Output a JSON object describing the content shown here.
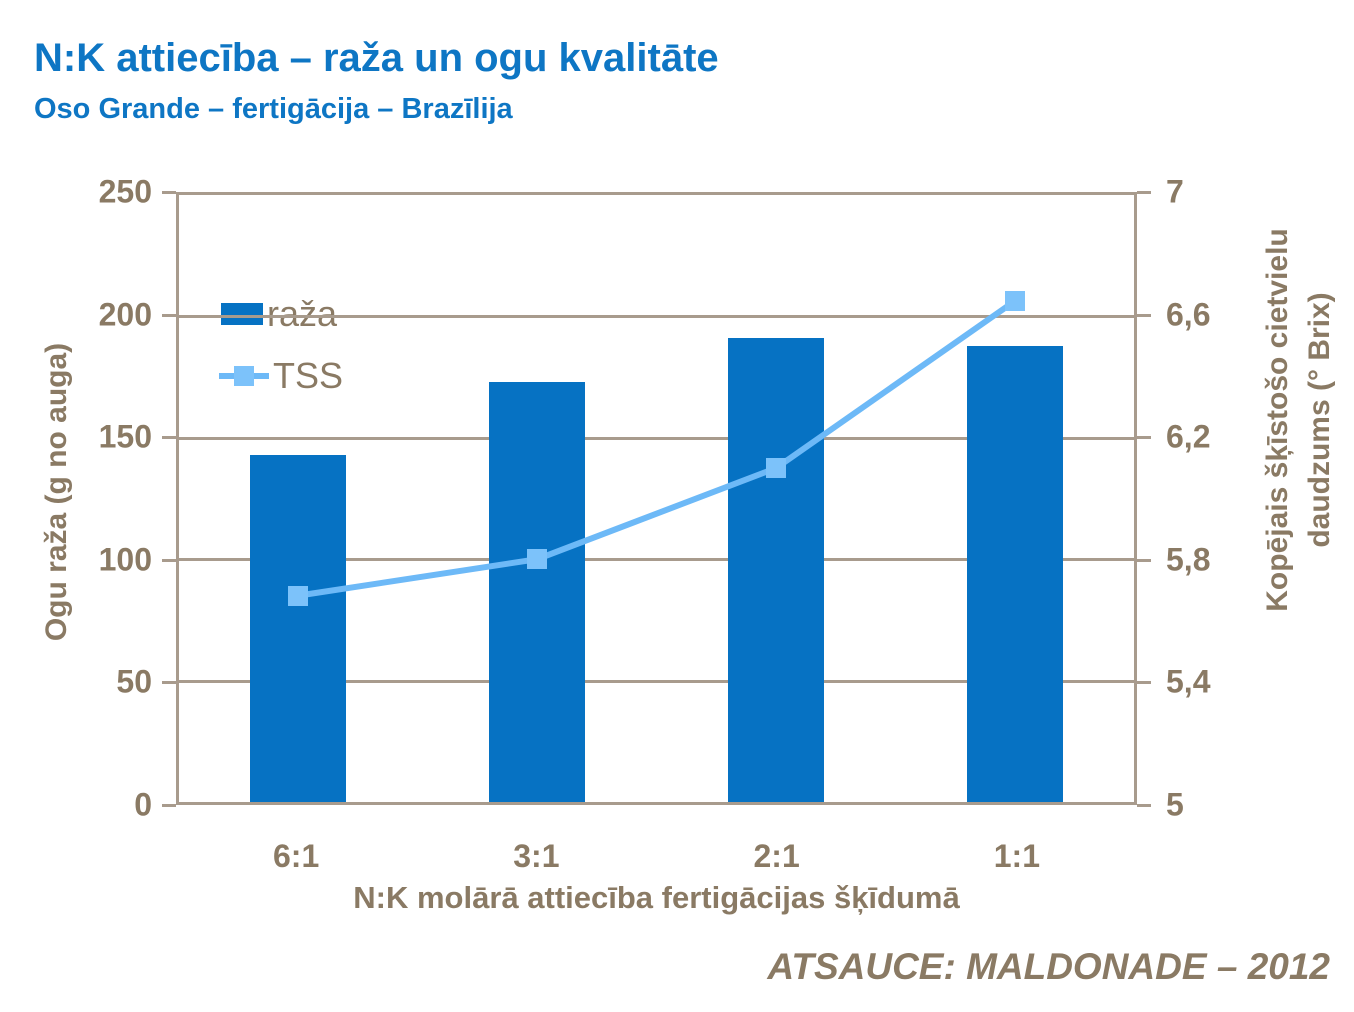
{
  "header": {
    "title": "N:K attiecība – raža un ogu kvalitāte",
    "subtitle": "Oso Grande – fertigācija – Brazīlija"
  },
  "footer": {
    "source": "ATSAUCE: MALDONADE – 2012"
  },
  "colors": {
    "title_blue": "#0E76C4",
    "bar_blue": "#0672C3",
    "line_blue": "#6DB9F7",
    "marker_blue": "#7CC2FA",
    "axis_text_brown": "#8A7A64",
    "grid_brown": "#A89B8D"
  },
  "chart_data": {
    "type": "bar+line",
    "title": "N:K attiecība – raža un ogu kvalitāte",
    "subtitle": "Oso Grande – fertigācija – Brazīlija",
    "categories": [
      "6:1",
      "3:1",
      "2:1",
      "1:1"
    ],
    "series": [
      {
        "name": "raža",
        "type": "bar",
        "axis": "left",
        "values": [
          143,
          173,
          191,
          188
        ]
      },
      {
        "name": "TSS",
        "type": "line",
        "axis": "right",
        "values": [
          5.68,
          5.8,
          6.1,
          6.65
        ]
      }
    ],
    "xlabel": "N:K molārā attiecība fertigācijas šķīdumā",
    "ylabel_left": "Ogu raža (g no auga)",
    "ylabel_right": "Kopējais šķīstošo cietvielu daudzums (° Brix)",
    "ylabel_right_lines": {
      "line1": "Kopējais šķīstošo cietvielu",
      "line2": "daudzums (° Brix)"
    },
    "left_axis": {
      "min": 0,
      "max": 250,
      "ticks": [
        "250",
        "200",
        "150",
        "100",
        "50",
        "0"
      ]
    },
    "right_axis": {
      "min": 5,
      "max": 7,
      "ticks": [
        "7",
        "6,6",
        "6,2",
        "5,8",
        "5,4",
        "5"
      ]
    },
    "grid": true,
    "legend_position": "inside-top-left",
    "source": "ATSAUCE: MALDONADE – 2012"
  }
}
